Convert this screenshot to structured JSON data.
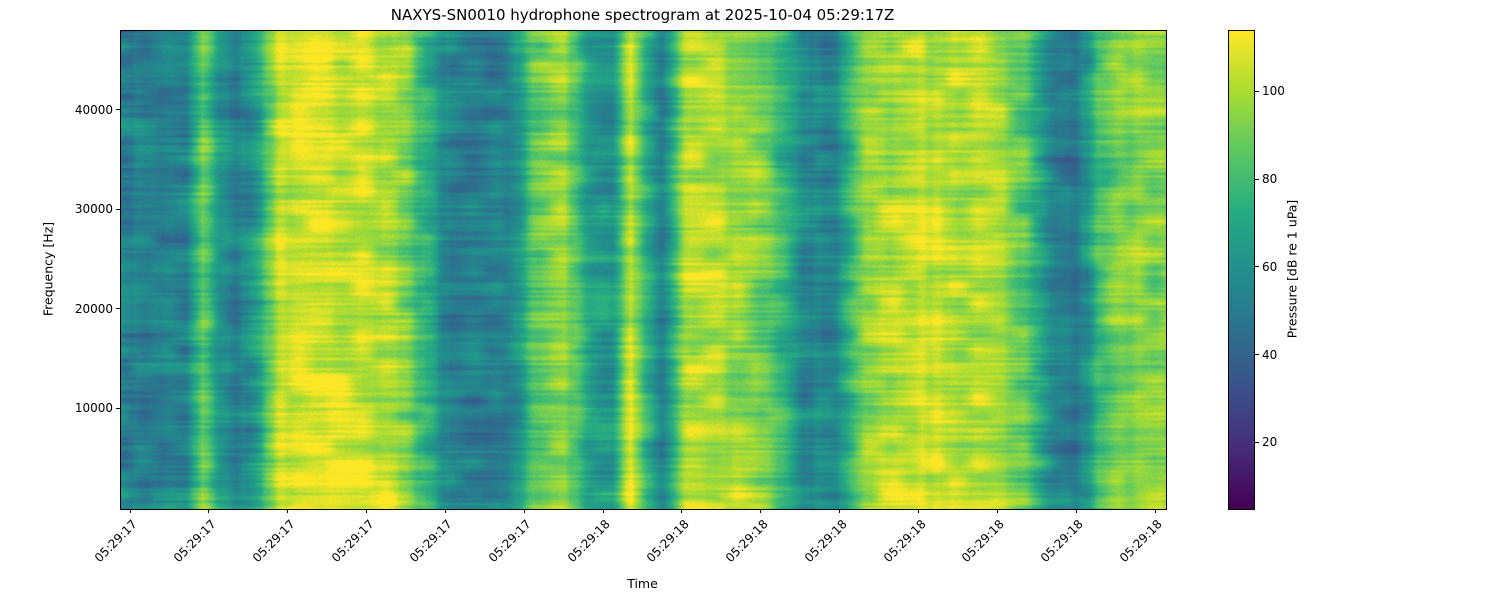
{
  "chart_data": {
    "type": "heatmap",
    "subtype": "spectrogram",
    "title": "NAXYS-SN0010 hydrophone spectrogram at 2025-10-04 05:29:17Z",
    "xlabel": "Time",
    "ylabel": "Frequency [Hz]",
    "colorbar_label": "Pressure [dB re 1 uPa]",
    "colormap": "viridis",
    "grid": false,
    "x_tick_labels": [
      "05:29:17",
      "05:29:17",
      "05:29:17",
      "05:29:17",
      "05:29:17",
      "05:29:17",
      "05:29:18",
      "05:29:18",
      "05:29:18",
      "05:29:18",
      "05:29:18",
      "05:29:18",
      "05:29:18",
      "05:29:18"
    ],
    "y_ticks": [
      10000,
      20000,
      30000,
      40000
    ],
    "ylim": [
      0,
      48000
    ],
    "clim": [
      5,
      114
    ],
    "colorbar_ticks": [
      20,
      40,
      60,
      80,
      100
    ],
    "time_profile": {
      "description": "Approximate column-mean sound pressure level (dB re 1 uPa) along the time axis, t normalized 0-1 across the plot; alternating dark (quiet ~48-60 dB) and bright (loud ~95-110 dB) vertical bands as seen in the spectrogram",
      "t": [
        0.0,
        0.03,
        0.062,
        0.078,
        0.096,
        0.112,
        0.134,
        0.15,
        0.19,
        0.23,
        0.27,
        0.295,
        0.315,
        0.35,
        0.375,
        0.395,
        0.425,
        0.45,
        0.47,
        0.488,
        0.503,
        0.518,
        0.54,
        0.558,
        0.59,
        0.62,
        0.64,
        0.66,
        0.685,
        0.705,
        0.73,
        0.77,
        0.81,
        0.845,
        0.872,
        0.895,
        0.915,
        0.935,
        0.955,
        0.975,
        1.0
      ],
      "mean_db": [
        55,
        50,
        52,
        90,
        60,
        48,
        72,
        104,
        109,
        107,
        98,
        72,
        52,
        50,
        56,
        88,
        97,
        64,
        60,
        106,
        70,
        52,
        100,
        104,
        96,
        88,
        70,
        52,
        56,
        88,
        102,
        106,
        103,
        100,
        78,
        50,
        48,
        80,
        93,
        96,
        92
      ],
      "striation_db": 14
    },
    "texture": {
      "blob_amp": 20,
      "streak_amp": 14,
      "stripe_amp": 8,
      "grain_amp": 5,
      "bottom_boost_db": 7
    },
    "viridis_stops": [
      [
        68,
        1,
        84
      ],
      [
        71,
        44,
        122
      ],
      [
        59,
        81,
        139
      ],
      [
        44,
        113,
        142
      ],
      [
        33,
        144,
        141
      ],
      [
        39,
        173,
        129
      ],
      [
        92,
        200,
        99
      ],
      [
        170,
        220,
        50
      ],
      [
        253,
        231,
        37
      ]
    ]
  }
}
